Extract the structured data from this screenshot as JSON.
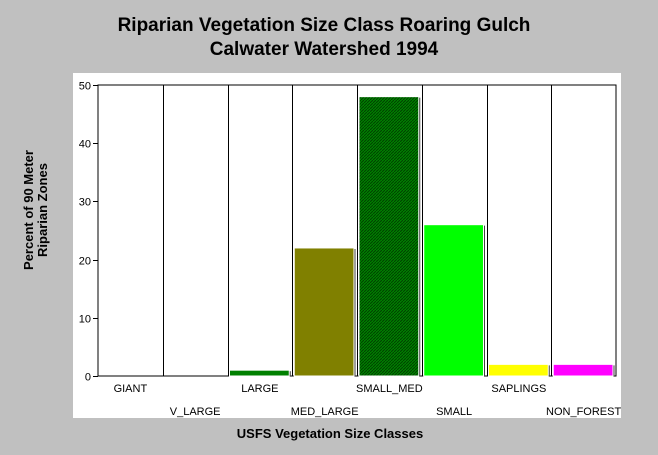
{
  "chart_data": {
    "type": "bar",
    "title_line1": "Riparian Vegetation Size Class Roaring Gulch",
    "title_line2": "Calwater Watershed 1994",
    "ylabel_line1": "Percent of 90 Meter",
    "ylabel_line2": "Riparian Zones",
    "xlabel": "USFS Vegetation Size Classes",
    "categories": [
      "GIANT",
      "V_LARGE",
      "LARGE",
      "MED_LARGE",
      "SMALL_MED",
      "SMALL",
      "SAPLINGS",
      "NON_FOREST"
    ],
    "values": [
      0,
      0,
      1,
      22,
      48,
      26,
      2,
      2
    ],
    "colors": [
      "#ffffff",
      "#ffffff",
      "#008000",
      "#808000",
      "#008000",
      "#00ff00",
      "#ffff00",
      "#ff00ff"
    ],
    "hatched": [
      false,
      false,
      false,
      false,
      true,
      false,
      false,
      false
    ],
    "ylim": [
      0,
      50
    ],
    "yticks": [
      0,
      10,
      20,
      30,
      40,
      50
    ],
    "grid": "vertical"
  }
}
